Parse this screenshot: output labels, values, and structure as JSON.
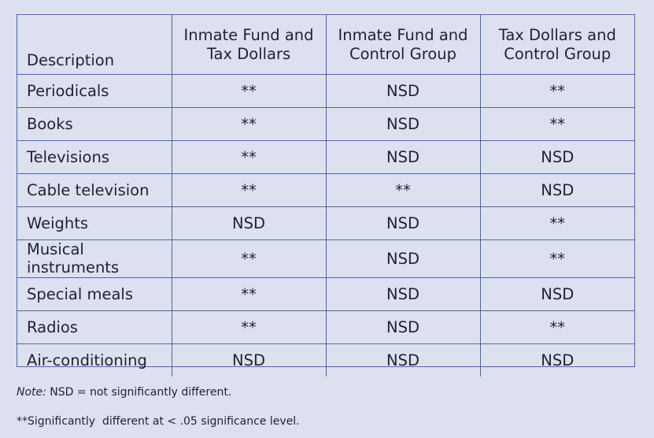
{
  "table": {
    "headers": [
      {
        "line1": "Description",
        "line2": ""
      },
      {
        "line1": "Inmate Fund and",
        "line2": "Tax Dollars"
      },
      {
        "line1": "Inmate Fund and",
        "line2": "Control Group"
      },
      {
        "line1": "Tax Dollars and",
        "line2": "Control Group"
      }
    ],
    "rows": [
      [
        "Periodicals",
        "**",
        "NSD",
        "**"
      ],
      [
        "Books",
        "**",
        "NSD",
        "**"
      ],
      [
        "Televisions",
        "**",
        "NSD",
        "NSD"
      ],
      [
        "Cable television",
        "**",
        "**",
        "NSD"
      ],
      [
        "Weights",
        "NSD",
        "NSD",
        "**"
      ],
      [
        "Musical instruments",
        "**",
        "NSD",
        "**"
      ],
      [
        "Special meals",
        "**",
        "NSD",
        "NSD"
      ],
      [
        "Radios",
        "**",
        "NSD",
        "**"
      ],
      [
        "Air-conditioning",
        "NSD",
        "NSD",
        "NSD"
      ]
    ]
  },
  "notes": {
    "note_label": "Note:",
    "note_text": " NSD = not significantly different.",
    "significance": "**Significantly  different at < .05 significance level."
  },
  "colors": {
    "background": "#dde1ef",
    "border": "#4b66a0"
  }
}
